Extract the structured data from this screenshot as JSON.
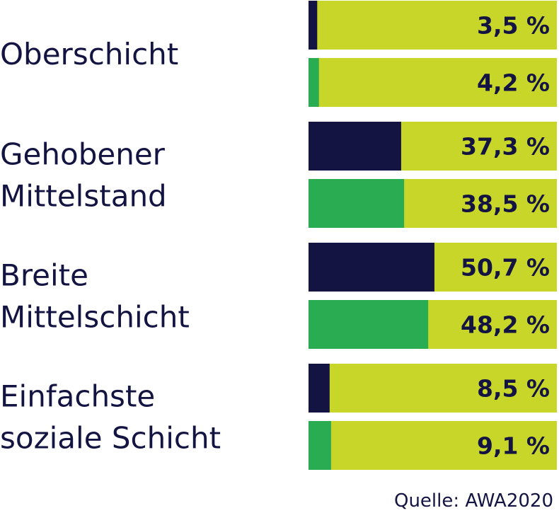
{
  "chart_data": {
    "type": "bar",
    "orientation": "horizontal",
    "categories": [
      [
        "Oberschicht"
      ],
      [
        "Gehobener",
        "Mittelstand"
      ],
      [
        "Breite",
        "Mittelschicht"
      ],
      [
        "Einfachste",
        "soziale Schicht"
      ]
    ],
    "series": [
      {
        "values": [
          3.5,
          37.3,
          50.7,
          8.5
        ],
        "labels": [
          "3,5 %",
          "37,3 %",
          "50,7 %",
          "8,5 %"
        ],
        "color": "#141443"
      },
      {
        "values": [
          4.2,
          38.5,
          48.2,
          9.1
        ],
        "labels": [
          "4,2 %",
          "38,5 %",
          "48,2 %",
          "9,1 %"
        ],
        "color": "#2aac53"
      }
    ],
    "track_color": "#c8d62a",
    "xlim": [
      0,
      100
    ],
    "legend": "none",
    "grid": false
  },
  "source": "Quelle: AWA2020"
}
